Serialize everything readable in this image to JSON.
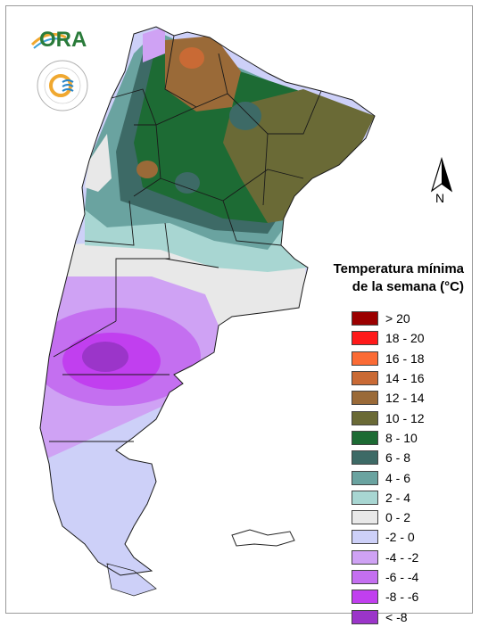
{
  "logos": {
    "ora_text": "ORA",
    "smn_ring_text": "SERVICIO METEOROLÓGICO NACIONAL",
    "smn_country": "ARGENTINA"
  },
  "north": {
    "label": "N"
  },
  "legend": {
    "title_line1": "Temperatura mínima",
    "title_line2": "de la semana (°C)",
    "items": [
      {
        "label": "> 20",
        "color": "#9b0000"
      },
      {
        "label": "18 - 20",
        "color": "#ff1a1a"
      },
      {
        "label": "16 - 18",
        "color": "#fb6b35"
      },
      {
        "label": "14 - 16",
        "color": "#c96a35"
      },
      {
        "label": "12 - 14",
        "color": "#9a6a38"
      },
      {
        "label": "10 - 12",
        "color": "#6a6a36"
      },
      {
        "label": "8 - 10",
        "color": "#1d6b34"
      },
      {
        "label": "6 - 8",
        "color": "#3d6a66"
      },
      {
        "label": "4 - 6",
        "color": "#6aa3a0"
      },
      {
        "label": "2 - 4",
        "color": "#a8d6d2"
      },
      {
        "label": "0 - 2",
        "color": "#e8e8e8"
      },
      {
        "label": "-2 - 0",
        "color": "#cdd0f8"
      },
      {
        "label": "-4 - -2",
        "color": "#cfa2f4"
      },
      {
        "label": "-6 - -4",
        "color": "#c46ff0"
      },
      {
        "label": "-8 - -6",
        "color": "#c13fef"
      },
      {
        "label": "< -8",
        "color": "#9b35c9"
      }
    ]
  }
}
